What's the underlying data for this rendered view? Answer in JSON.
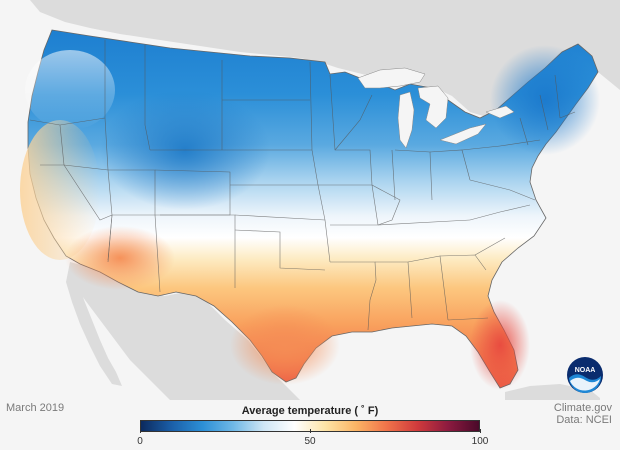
{
  "map": {
    "date_label": "March 2019",
    "legend": {
      "title": "Average temperature ( ˚ F)",
      "min": 0,
      "max": 100,
      "ticks": [
        "0",
        "50",
        "100"
      ],
      "colors": [
        "#0c2a5e",
        "#1b5fa8",
        "#2c8fd6",
        "#6fb8e6",
        "#cfe6f5",
        "#ffffff",
        "#fde4a6",
        "#fbb465",
        "#f0734a",
        "#cf3a3c",
        "#8c1a3f",
        "#4a0a2a"
      ]
    },
    "credit": [
      "Climate.gov",
      "Data: NCEI"
    ],
    "logo_text": "NOAA",
    "colors": {
      "ocean": "#f5f5f5",
      "neighbor_land": "#dcdcdc",
      "great_lakes": "#f5f5f5",
      "state_border": "#555555"
    }
  }
}
